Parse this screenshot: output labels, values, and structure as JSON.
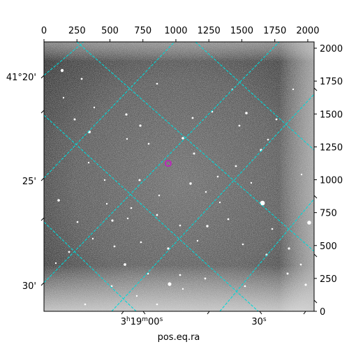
{
  "figure": {
    "xlabel": "pos.eq.ra",
    "top_ticks": [
      "0",
      "250",
      "500",
      "750",
      "1000",
      "1250",
      "1500",
      "1750",
      "2000"
    ],
    "right_ticks": [
      "0",
      "250",
      "500",
      "750",
      "1000",
      "1250",
      "1500",
      "1750",
      "2000"
    ],
    "dec_labels": [
      "41°20'",
      "25'",
      "30'"
    ],
    "ra_labels": [
      "3h19m00s",
      "30s"
    ],
    "colors": {
      "grid": "#00d8d8",
      "marker": "#c020c0",
      "frame": "#000000"
    }
  }
}
